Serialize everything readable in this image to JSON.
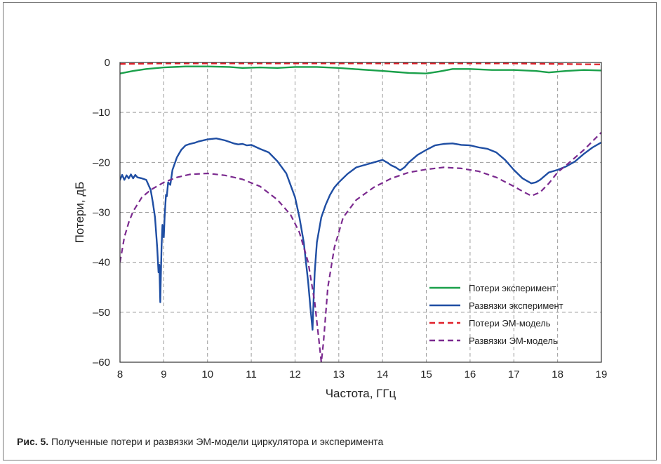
{
  "caption": {
    "label": "Рис. 5.",
    "text": " Полученные потери и развязки ЭМ-модели циркулятора и эксперимента"
  },
  "chart_data": {
    "type": "line",
    "title": "",
    "xlabel": "Частота, ГГц",
    "ylabel": "Потери, дБ",
    "xlim": [
      8,
      19
    ],
    "ylim": [
      -60,
      0
    ],
    "xticks": [
      8,
      9,
      10,
      11,
      12,
      13,
      14,
      15,
      16,
      17,
      18,
      19
    ],
    "yticks": [
      0,
      -10,
      -20,
      -30,
      -40,
      -50,
      -60
    ],
    "xtick_labels": [
      "8",
      "9",
      "10",
      "11",
      "12",
      "13",
      "14",
      "15",
      "16",
      "17",
      "18",
      "19"
    ],
    "ytick_labels": [
      "0",
      "–10",
      "–20",
      "–30",
      "–40",
      "–50",
      "–60"
    ],
    "grid": true,
    "legend_position": "bottom-right",
    "series": [
      {
        "name": "Потери эксперимент",
        "color": "#1aa04a",
        "dash": "solid",
        "x": [
          8.0,
          8.3,
          8.6,
          9.0,
          9.5,
          10.0,
          10.5,
          10.8,
          11.2,
          11.6,
          12.0,
          12.5,
          13.0,
          13.5,
          14.0,
          14.3,
          14.6,
          15.0,
          15.3,
          15.6,
          16.0,
          16.5,
          17.0,
          17.5,
          17.8,
          18.2,
          18.6,
          19.0
        ],
        "y": [
          -2.2,
          -1.7,
          -1.3,
          -1.0,
          -0.8,
          -0.8,
          -0.9,
          -1.1,
          -1.0,
          -1.1,
          -0.9,
          -0.9,
          -1.1,
          -1.4,
          -1.7,
          -1.9,
          -2.1,
          -2.2,
          -1.8,
          -1.3,
          -1.3,
          -1.5,
          -1.5,
          -1.7,
          -2.0,
          -1.7,
          -1.5,
          -1.6
        ]
      },
      {
        "name": "Развязки эксперимент",
        "color": "#1f4ea3",
        "dash": "solid",
        "x": [
          8.0,
          8.05,
          8.1,
          8.15,
          8.2,
          8.25,
          8.3,
          8.35,
          8.4,
          8.5,
          8.6,
          8.7,
          8.75,
          8.8,
          8.85,
          8.88,
          8.9,
          8.92,
          8.95,
          8.97,
          9.0,
          9.02,
          9.05,
          9.07,
          9.1,
          9.15,
          9.2,
          9.3,
          9.4,
          9.5,
          9.6,
          9.7,
          9.8,
          10.0,
          10.2,
          10.4,
          10.6,
          10.7,
          10.8,
          10.9,
          11.0,
          11.2,
          11.4,
          11.6,
          11.8,
          12.0,
          12.1,
          12.2,
          12.3,
          12.35,
          12.4,
          12.43,
          12.45,
          12.5,
          12.6,
          12.7,
          12.8,
          12.9,
          13.0,
          13.2,
          13.4,
          13.6,
          13.8,
          14.0,
          14.1,
          14.2,
          14.3,
          14.4,
          14.5,
          14.6,
          14.8,
          15.0,
          15.2,
          15.4,
          15.6,
          15.8,
          16.0,
          16.2,
          16.4,
          16.6,
          16.8,
          17.0,
          17.2,
          17.4,
          17.5,
          17.6,
          17.8,
          18.0,
          18.2,
          18.4,
          18.6,
          18.8,
          19.0
        ],
        "y": [
          -23.5,
          -22.5,
          -23.5,
          -22.6,
          -23.2,
          -22.4,
          -23.2,
          -22.5,
          -23.0,
          -23.2,
          -23.5,
          -25.5,
          -28.0,
          -31.0,
          -37.0,
          -42.0,
          -40.5,
          -48.0,
          -37.0,
          -32.5,
          -35.0,
          -31.0,
          -26.5,
          -26.8,
          -24.0,
          -24.5,
          -21.5,
          -19.0,
          -17.5,
          -16.6,
          -16.3,
          -16.1,
          -15.8,
          -15.4,
          -15.2,
          -15.6,
          -16.2,
          -16.4,
          -16.3,
          -16.6,
          -16.5,
          -17.3,
          -18.0,
          -19.8,
          -22.2,
          -27.0,
          -31.0,
          -36.0,
          -44.0,
          -49.0,
          -53.5,
          -46.0,
          -42.0,
          -36.0,
          -31.0,
          -28.5,
          -26.5,
          -25.0,
          -24.0,
          -22.3,
          -21.0,
          -20.5,
          -20.0,
          -19.5,
          -20.0,
          -20.6,
          -21.0,
          -21.6,
          -21.0,
          -20.0,
          -18.5,
          -17.5,
          -16.6,
          -16.3,
          -16.2,
          -16.5,
          -16.6,
          -17.0,
          -17.3,
          -18.0,
          -19.5,
          -21.5,
          -23.2,
          -24.2,
          -24.0,
          -23.5,
          -22.0,
          -21.5,
          -20.8,
          -19.8,
          -18.3,
          -17.0,
          -16.0
        ]
      },
      {
        "name": "Потери ЭМ-модель",
        "color": "#e0202a",
        "dash": "dashed",
        "x": [
          8.0,
          9.0,
          10.0,
          11.0,
          12.0,
          13.0,
          14.0,
          15.0,
          16.0,
          17.0,
          18.0,
          19.0
        ],
        "y": [
          -0.3,
          -0.2,
          -0.2,
          -0.2,
          -0.2,
          -0.2,
          -0.2,
          -0.2,
          -0.2,
          -0.2,
          -0.3,
          -0.4
        ]
      },
      {
        "name": "Развязки ЭМ-модель",
        "color": "#7b2a8f",
        "dash": "dashed",
        "x": [
          8.0,
          8.1,
          8.2,
          8.3,
          8.5,
          8.7,
          9.0,
          9.3,
          9.6,
          10.0,
          10.4,
          10.8,
          11.2,
          11.6,
          11.9,
          12.1,
          12.3,
          12.45,
          12.55,
          12.6,
          12.65,
          12.75,
          12.9,
          13.1,
          13.4,
          13.8,
          14.2,
          14.6,
          15.0,
          15.4,
          15.8,
          16.2,
          16.6,
          17.0,
          17.2,
          17.4,
          17.6,
          17.8,
          18.0,
          18.3,
          18.6,
          19.0
        ],
        "y": [
          -40.0,
          -35.0,
          -32.0,
          -29.8,
          -27.0,
          -25.5,
          -24.0,
          -23.0,
          -22.4,
          -22.2,
          -22.6,
          -23.4,
          -24.8,
          -27.5,
          -30.5,
          -34.0,
          -40.0,
          -48.0,
          -56.0,
          -60.0,
          -56.0,
          -45.0,
          -37.0,
          -31.0,
          -27.5,
          -25.0,
          -23.2,
          -22.0,
          -21.4,
          -21.0,
          -21.2,
          -21.8,
          -23.0,
          -24.8,
          -25.8,
          -26.7,
          -26.0,
          -24.2,
          -22.0,
          -19.8,
          -17.5,
          -14.0
        ]
      }
    ]
  }
}
